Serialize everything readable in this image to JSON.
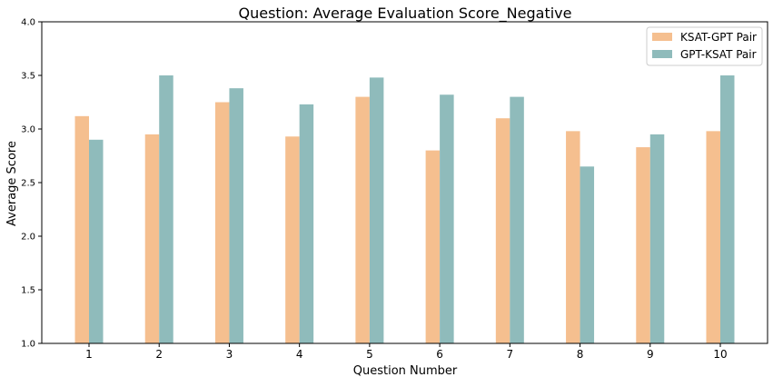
{
  "chart_data": {
    "type": "bar",
    "title": "Question: Average Evaluation Score_Negative",
    "xlabel": "Question Number",
    "ylabel": "Average Score",
    "ylim": [
      1.0,
      4.0
    ],
    "yticks": [
      "1.0",
      "1.5",
      "2.0",
      "2.5",
      "3.0",
      "3.5",
      "4.0"
    ],
    "categories": [
      "1",
      "2",
      "3",
      "4",
      "5",
      "6",
      "7",
      "8",
      "9",
      "10"
    ],
    "series": [
      {
        "name": "KSAT-GPT Pair",
        "color": "#f5bf8f",
        "values": [
          3.12,
          2.95,
          3.25,
          2.93,
          3.3,
          2.8,
          3.1,
          2.98,
          2.83,
          2.98
        ]
      },
      {
        "name": "GPT-KSAT Pair",
        "color": "#8fbbbb",
        "values": [
          2.9,
          3.5,
          3.38,
          3.23,
          3.48,
          3.32,
          3.3,
          2.65,
          2.95,
          3.5
        ]
      }
    ],
    "legend_position": "top-right",
    "grid": false
  }
}
